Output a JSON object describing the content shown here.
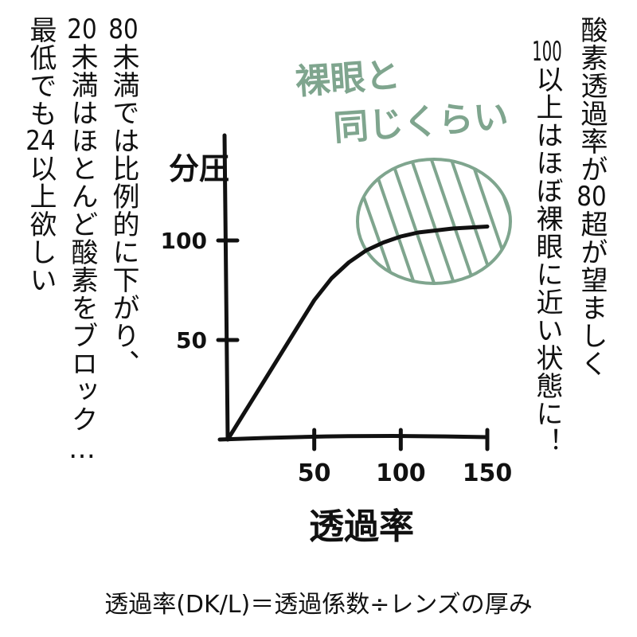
{
  "left_columns": [
    {
      "num": "80",
      "text": "未満では比例的に下がり、"
    },
    {
      "num": "20",
      "text": "未満はほとんど酸素をブロック…"
    },
    {
      "pre": "最低でも",
      "num": "24",
      "text": "以上欲しい"
    }
  ],
  "right_columns": [
    {
      "text": "酸素透過率が",
      "num": "80",
      "post": "超が望ましく"
    },
    {
      "num": "100",
      "text": "以上はほぼ裸眼に近い状態に！"
    }
  ],
  "annotation": {
    "line1": "裸眼と",
    "line2": "同じくらい"
  },
  "formula": "透過率(DK/L)＝透過係数÷レンズの厚み",
  "colors": {
    "ink": "#111111",
    "accent": "#7fa58e"
  },
  "chart_data": {
    "type": "line",
    "xlabel": "透過率",
    "ylabel": "分圧",
    "x_ticks": [
      50,
      100,
      150
    ],
    "y_ticks": [
      50,
      100
    ],
    "xlim": [
      0,
      160
    ],
    "ylim": [
      0,
      130
    ],
    "grid": false,
    "series": [
      {
        "x": [
          0,
          10,
          20,
          30,
          40,
          50,
          60,
          70,
          80,
          90,
          100,
          110,
          120,
          130,
          140,
          150
        ],
        "y": [
          0,
          14,
          28,
          42,
          56,
          70,
          81,
          89,
          95,
          99,
          102,
          104,
          105,
          106,
          106.5,
          107
        ]
      }
    ],
    "highlight_region": {
      "x_from": 80,
      "x_to": 150,
      "y_from": 86,
      "y_to": 125,
      "label": "裸眼と同じくらい"
    }
  }
}
